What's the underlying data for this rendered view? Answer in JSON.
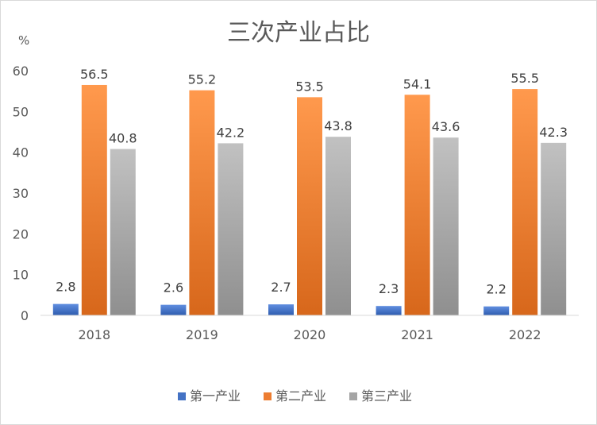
{
  "chart_data": {
    "type": "bar",
    "title": "三次产业占比",
    "ylabel": "%",
    "xlabel": "",
    "categories": [
      "2018",
      "2019",
      "2020",
      "2021",
      "2022"
    ],
    "ylim": [
      0,
      60
    ],
    "yticks": [
      0,
      10,
      20,
      30,
      40,
      50,
      60
    ],
    "grid": false,
    "legend_position": "bottom",
    "series": [
      {
        "name": "第一产业",
        "values": [
          2.8,
          2.6,
          2.7,
          2.3,
          2.2
        ],
        "color": "#4472C4",
        "labels": [
          "2.8",
          "2.6",
          "2.7",
          "2.3",
          "2.2"
        ]
      },
      {
        "name": "第二产业",
        "values": [
          56.5,
          55.2,
          53.5,
          54.1,
          55.5
        ],
        "color": "#ED7D31",
        "labels": [
          "56.5",
          "55.2",
          "53.5",
          "54.1",
          "55.5"
        ]
      },
      {
        "name": "第三产业",
        "values": [
          40.8,
          42.2,
          43.8,
          43.6,
          42.3
        ],
        "color": "#A5A5A5",
        "labels": [
          "40.8",
          "42.2",
          "43.8",
          "43.6",
          "42.3"
        ]
      }
    ]
  }
}
